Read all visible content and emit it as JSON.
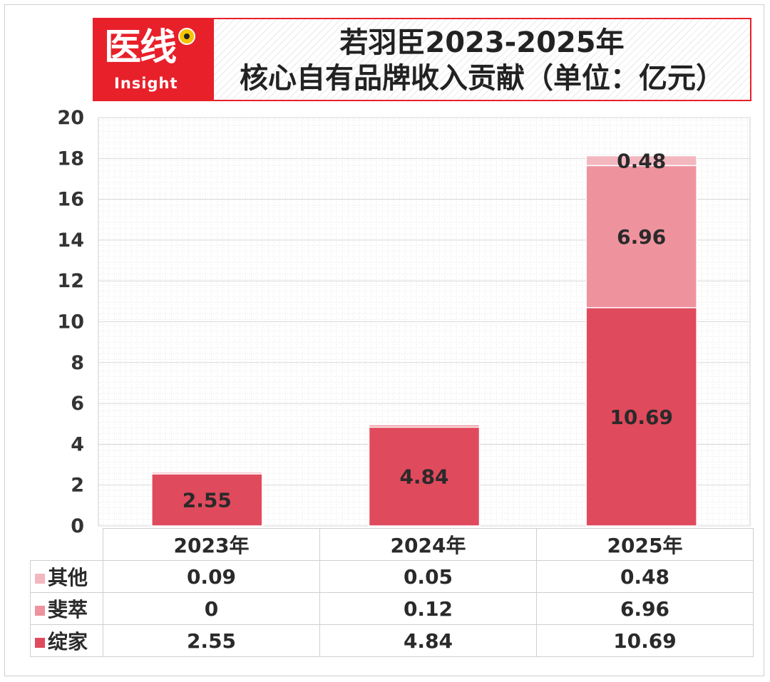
{
  "header": {
    "logo_cn": "医线",
    "logo_en": "Insight",
    "title_line1": "若羽臣2023-2025年",
    "title_line2": "核心自有品牌收入贡献（单位：亿元）"
  },
  "colors": {
    "绽家": "#e04a5d",
    "斐萃": "#ee939e",
    "其他": "#f3b7c0",
    "header_red": "#e8202a"
  },
  "chart_data": {
    "type": "bar",
    "stacked": true,
    "categories": [
      "2023年",
      "2024年",
      "2025年"
    ],
    "series": [
      {
        "name": "绽家",
        "values": [
          2.55,
          4.84,
          10.69
        ]
      },
      {
        "name": "斐萃",
        "values": [
          0,
          0.12,
          6.96
        ]
      },
      {
        "name": "其他",
        "values": [
          0.09,
          0.05,
          0.48
        ]
      }
    ],
    "bar_labels": [
      [
        "2.55",
        "",
        ""
      ],
      [
        "4.84",
        "",
        ""
      ],
      [
        "10.69",
        "6.96",
        "0.48"
      ]
    ],
    "yticks": [
      "0",
      "2",
      "4",
      "6",
      "8",
      "10",
      "12",
      "14",
      "16",
      "18",
      "20"
    ],
    "ylim": [
      0,
      20
    ],
    "grid": true
  },
  "table": {
    "header": [
      "2023年",
      "2024年",
      "2025年"
    ],
    "rows": [
      {
        "name": "其他",
        "values": [
          "0.09",
          "0.05",
          "0.48"
        ]
      },
      {
        "name": "斐萃",
        "values": [
          "0",
          "0.12",
          "6.96"
        ]
      },
      {
        "name": "绽家",
        "values": [
          "2.55",
          "4.84",
          "10.69"
        ]
      }
    ]
  }
}
